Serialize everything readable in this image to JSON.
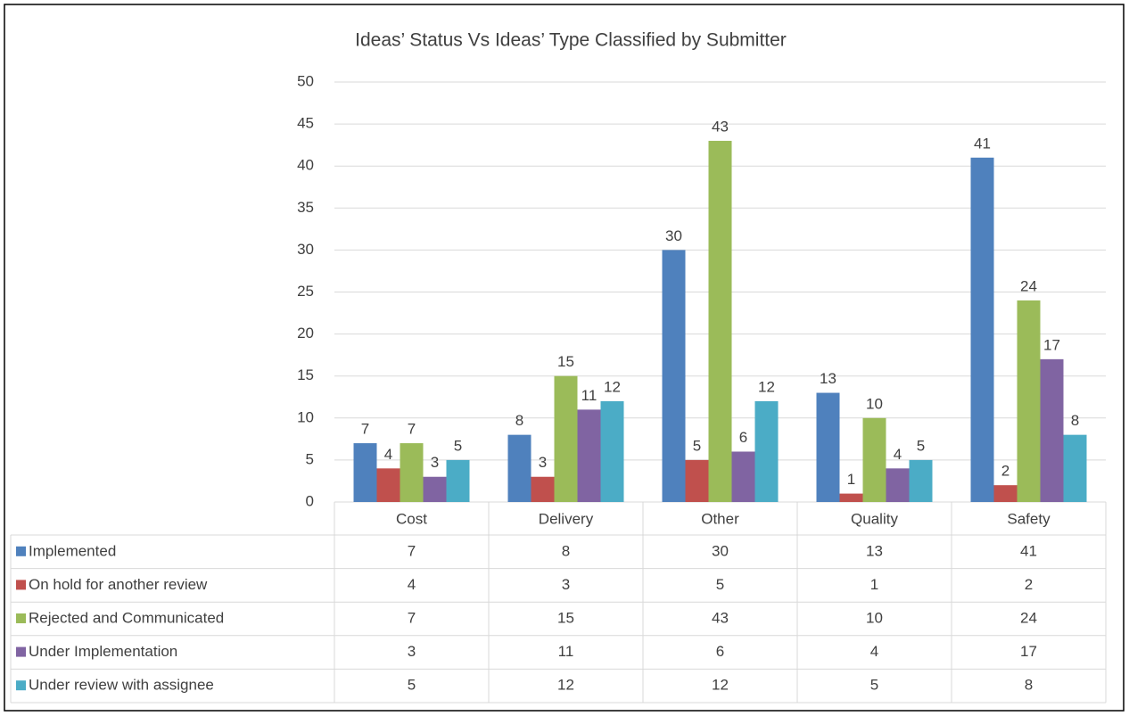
{
  "chart_data": {
    "type": "bar",
    "title": "Ideas’ Status Vs Ideas’ Type Classified by Submitter",
    "categories": [
      "Cost",
      "Delivery",
      "Other",
      "Quality",
      "Safety"
    ],
    "series": [
      {
        "name": "Implemented",
        "color": "#4f81bd",
        "values": [
          7,
          8,
          30,
          13,
          41
        ]
      },
      {
        "name": "On hold for another review",
        "color": "#c0504d",
        "values": [
          4,
          3,
          5,
          1,
          2
        ]
      },
      {
        "name": "Rejected and Communicated",
        "color": "#9bbb59",
        "values": [
          7,
          15,
          43,
          10,
          24
        ]
      },
      {
        "name": "Under Implementation",
        "color": "#8064a2",
        "values": [
          3,
          11,
          6,
          4,
          17
        ]
      },
      {
        "name": "Under review with assignee",
        "color": "#4bacc6",
        "values": [
          5,
          12,
          12,
          5,
          8
        ]
      }
    ],
    "ylim": [
      0,
      50
    ],
    "yticks": [
      0,
      5,
      10,
      15,
      20,
      25,
      30,
      35,
      40,
      45,
      50
    ],
    "grid": true
  }
}
